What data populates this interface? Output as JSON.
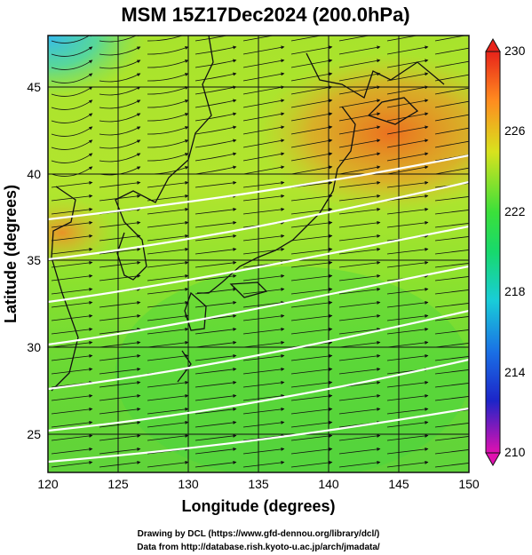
{
  "title": "MSM 15Z17Dec2024 (200.0hPa)",
  "xaxis": {
    "label": "Longitude (degrees)",
    "ticks": [
      "120",
      "125",
      "130",
      "135",
      "140",
      "145",
      "150"
    ],
    "range": [
      120,
      150
    ]
  },
  "yaxis": {
    "label": "Latitude  (degrees)",
    "ticks": [
      "25",
      "30",
      "35",
      "40",
      "45"
    ],
    "range": [
      22.4,
      47.6
    ]
  },
  "colorbar": {
    "ticks": [
      "230",
      "226",
      "222",
      "218",
      "214",
      "210"
    ],
    "range": [
      210,
      230
    ]
  },
  "footer": {
    "line1": "Drawing by DCL (https://www.gfd-dennou.org/library/dcl/)",
    "line2": "Data from http://database.rish.kyoto-u.ac.jp/arch/jmadata/"
  },
  "colors": {
    "warm": "#ef6a1e",
    "mid": "#9be52a",
    "cool": "#2fd04a",
    "cyan": "#35c9ef"
  }
}
